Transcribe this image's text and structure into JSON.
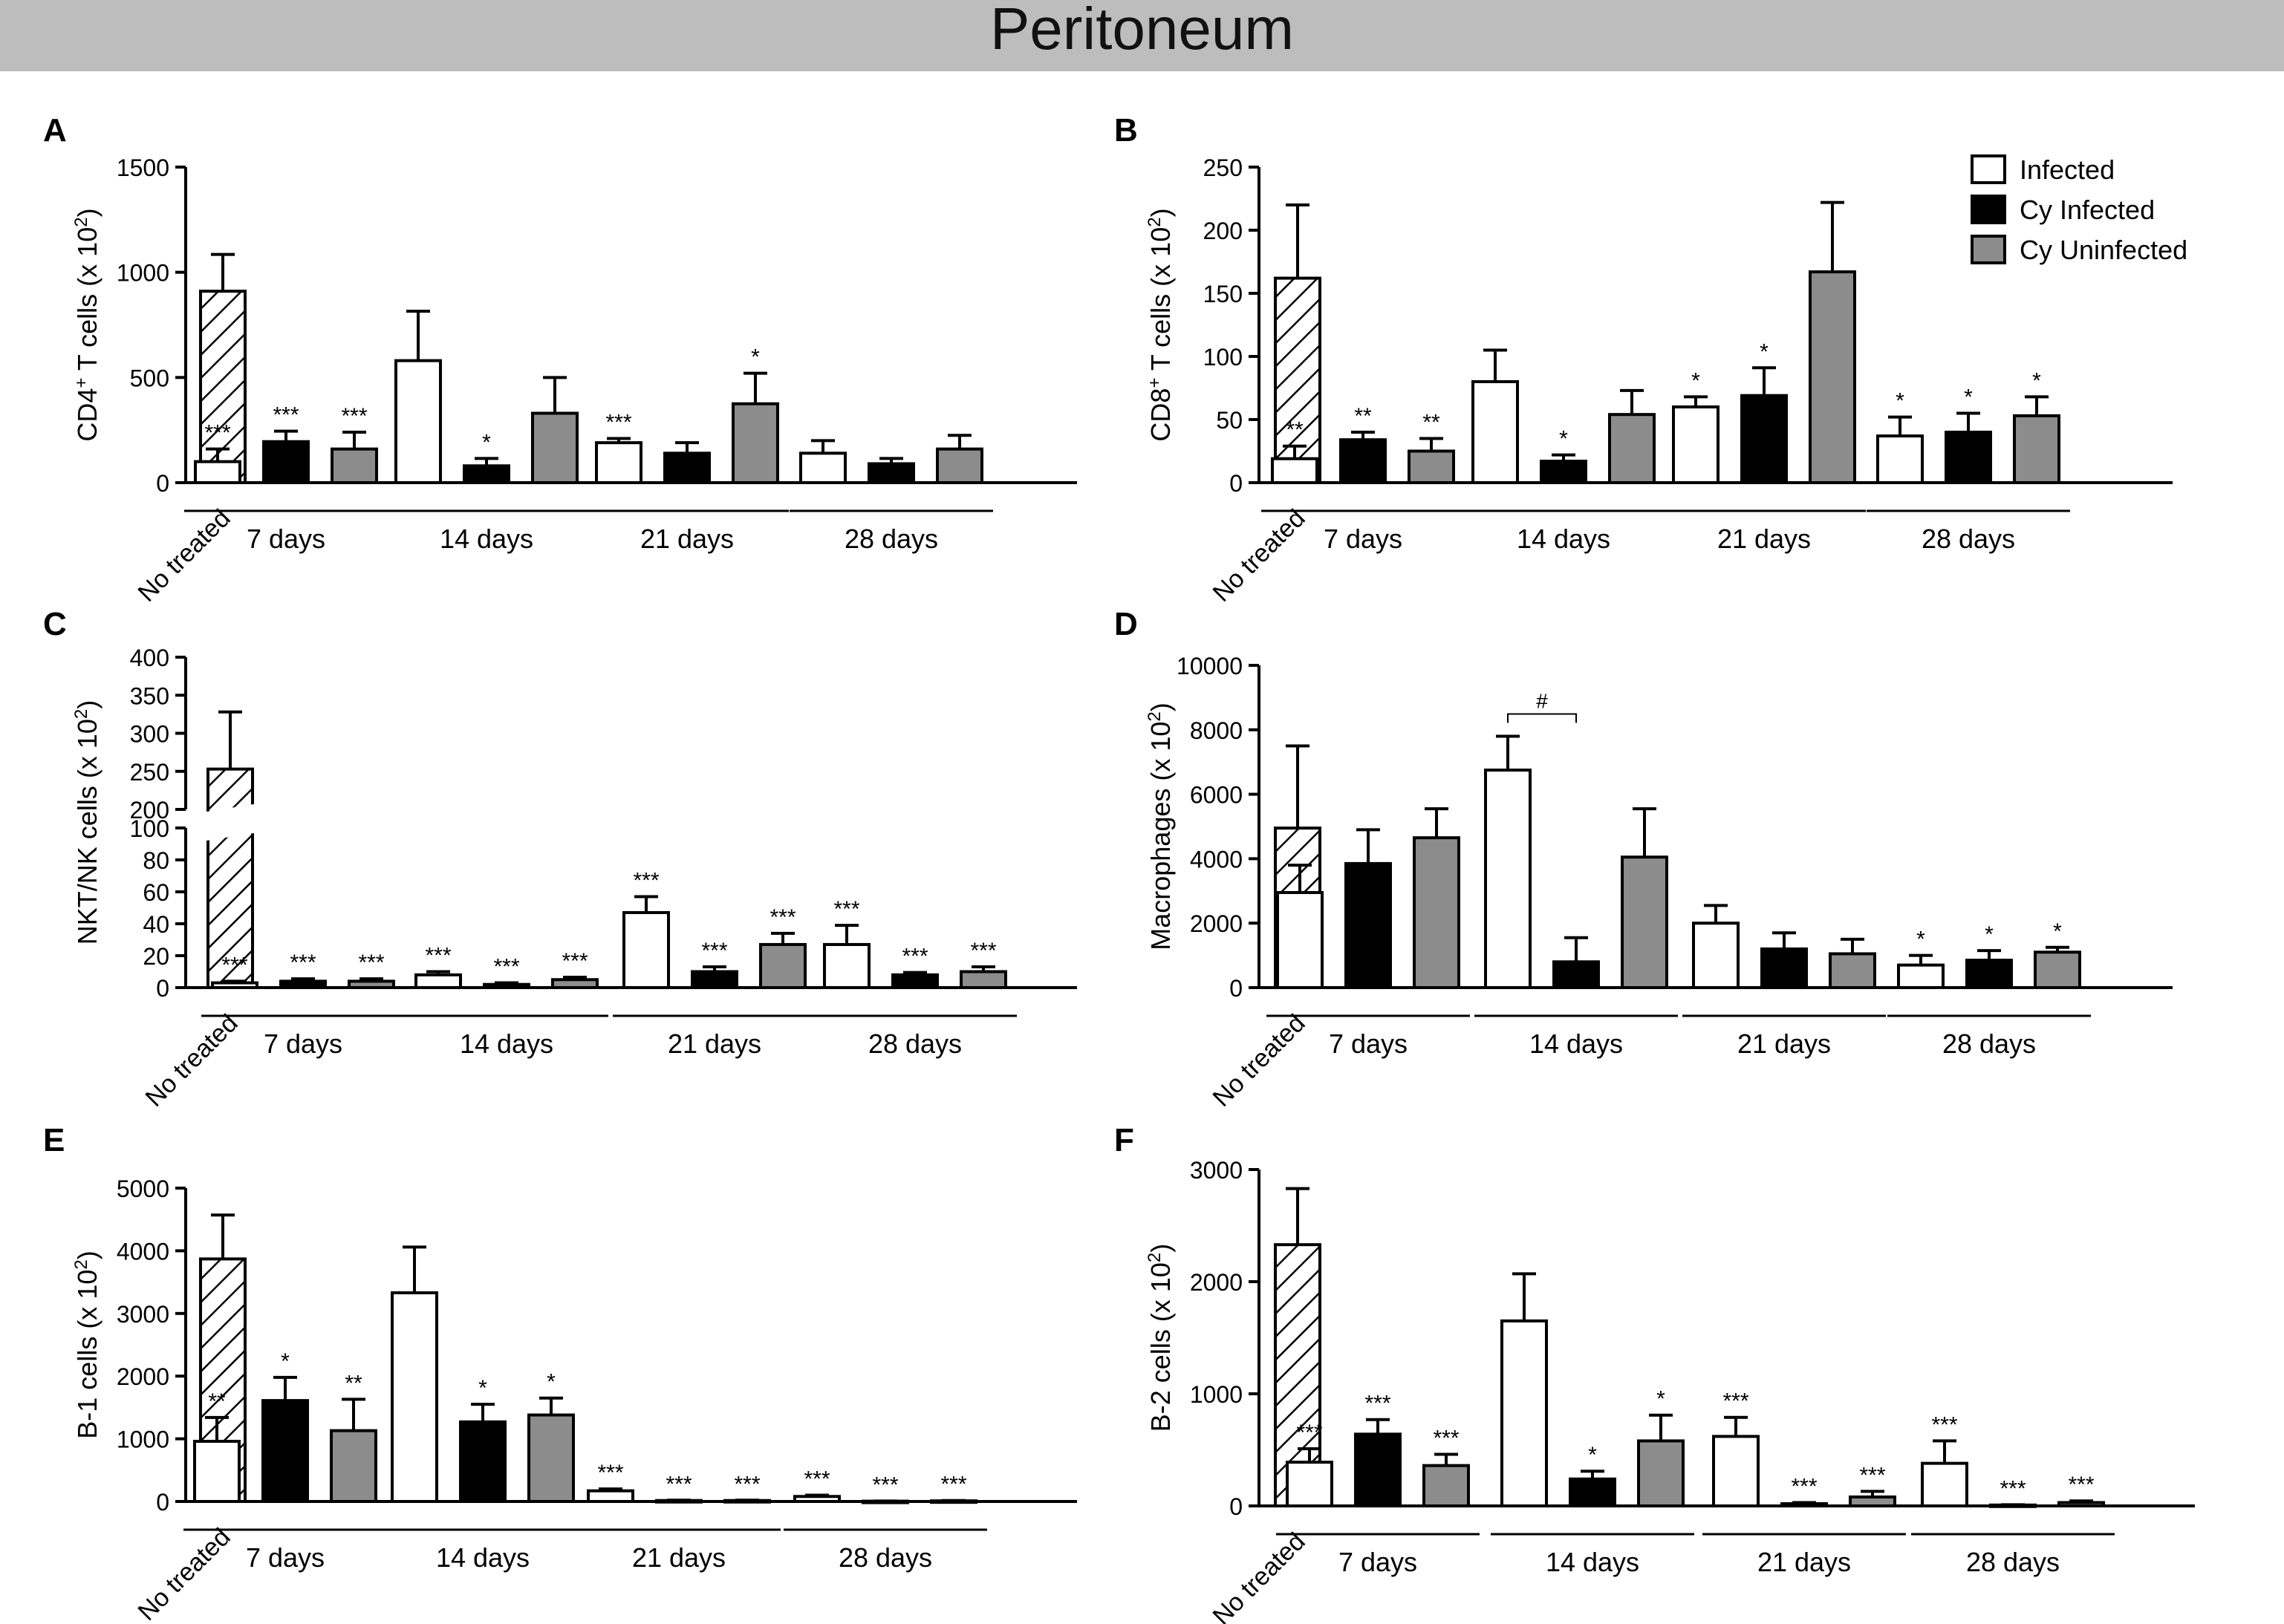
{
  "page": {
    "title": "Peritoneum"
  },
  "legend": {
    "entries": [
      {
        "label": "Infected",
        "fill": "#ffffff"
      },
      {
        "label": "Cy Infected",
        "fill": "#000000"
      },
      {
        "label": "Cy Uninfected",
        "fill": "#8c8c8c"
      }
    ]
  },
  "colors": {
    "infected": "#ffffff",
    "cy_infected": "#000000",
    "cy_uninfected": "#8c8c8c",
    "header": "#bdbdbd"
  },
  "chart_data": [
    {
      "panel": "A",
      "type": "bar",
      "ylabel_main": "CD4",
      "ylabel_sup": "+",
      "ylabel_rest": " T cells (x 10",
      "ylabel_exp": "2",
      "ylabel_end": ")",
      "ylim": [
        0,
        1500
      ],
      "yticks": [
        "0",
        "500",
        "1000",
        "1500"
      ],
      "control": {
        "label": "No treated",
        "value": 910,
        "err": 175
      },
      "groups": [
        {
          "label": "7 days",
          "bars": [
            {
              "series": "Infected",
              "value": 100,
              "err": 60,
              "sig": "***"
            },
            {
              "series": "Cy Infected",
              "value": 195,
              "err": 50,
              "sig": "***"
            },
            {
              "series": "Cy Uninfected",
              "value": 160,
              "err": 80,
              "sig": "***"
            }
          ]
        },
        {
          "label": "14 days",
          "bars": [
            {
              "series": "Infected",
              "value": 580,
              "err": 235,
              "sig": ""
            },
            {
              "series": "Cy Infected",
              "value": 80,
              "err": 35,
              "sig": "*"
            },
            {
              "series": "Cy Uninfected",
              "value": 330,
              "err": 170,
              "sig": ""
            }
          ]
        },
        {
          "label": "21 days",
          "bars": [
            {
              "series": "Infected",
              "value": 190,
              "err": 20,
              "sig": "***"
            },
            {
              "series": "Cy Infected",
              "value": 140,
              "err": 50,
              "sig": ""
            },
            {
              "series": "Cy Uninfected",
              "value": 375,
              "err": 145,
              "sig": "*"
            }
          ]
        },
        {
          "label": "28 days",
          "bars": [
            {
              "series": "Infected",
              "value": 140,
              "err": 60,
              "sig": ""
            },
            {
              "series": "Cy Infected",
              "value": 90,
              "err": 25,
              "sig": ""
            },
            {
              "series": "Cy Uninfected",
              "value": 160,
              "err": 65,
              "sig": ""
            }
          ]
        }
      ]
    },
    {
      "panel": "B",
      "type": "bar",
      "ylabel_main": "CD8",
      "ylabel_sup": "+",
      "ylabel_rest": " T cells (x 10",
      "ylabel_exp": "2",
      "ylabel_end": ")",
      "ylim": [
        0,
        250
      ],
      "yticks": [
        "0",
        "50",
        "100",
        "150",
        "200",
        "250"
      ],
      "control": {
        "label": "No treated",
        "value": 162,
        "err": 58
      },
      "groups": [
        {
          "label": "7 days",
          "bars": [
            {
              "series": "Infected",
              "value": 19,
              "err": 10,
              "sig": "**"
            },
            {
              "series": "Cy Infected",
              "value": 34,
              "err": 6,
              "sig": "**"
            },
            {
              "series": "Cy Uninfected",
              "value": 25,
              "err": 10,
              "sig": "**"
            }
          ]
        },
        {
          "label": "14 days",
          "bars": [
            {
              "series": "Infected",
              "value": 80,
              "err": 25,
              "sig": ""
            },
            {
              "series": "Cy Infected",
              "value": 17,
              "err": 5,
              "sig": "*"
            },
            {
              "series": "Cy Uninfected",
              "value": 54,
              "err": 19,
              "sig": ""
            }
          ]
        },
        {
          "label": "21 days",
          "bars": [
            {
              "series": "Infected",
              "value": 60,
              "err": 8,
              "sig": "*"
            },
            {
              "series": "Cy Infected",
              "value": 69,
              "err": 22,
              "sig": "*"
            },
            {
              "series": "Cy Uninfected",
              "value": 167,
              "err": 55,
              "sig": ""
            }
          ]
        },
        {
          "label": "28 days",
          "bars": [
            {
              "series": "Infected",
              "value": 37,
              "err": 15,
              "sig": "*"
            },
            {
              "series": "Cy Infected",
              "value": 40,
              "err": 15,
              "sig": "*"
            },
            {
              "series": "Cy Uninfected",
              "value": 53,
              "err": 15,
              "sig": "*"
            }
          ]
        }
      ]
    },
    {
      "panel": "C",
      "type": "bar",
      "axis_break": true,
      "ylabel_main": "NKT/NK cells (x 10",
      "ylabel_sup": "",
      "ylabel_rest": "",
      "ylabel_exp": "2",
      "ylabel_end": ")",
      "ylim_lower": [
        0,
        100
      ],
      "ylim_upper": [
        200,
        400
      ],
      "yticks_lower": [
        "0",
        "20",
        "40",
        "60",
        "80",
        "100"
      ],
      "yticks_upper": [
        "200",
        "250",
        "300",
        "350",
        "400"
      ],
      "control": {
        "label": "No treated",
        "value": 253,
        "err": 75
      },
      "groups": [
        {
          "label": "7 days",
          "bars": [
            {
              "series": "Infected",
              "value": 3,
              "err": 1,
              "sig": "***"
            },
            {
              "series": "Cy Infected",
              "value": 4,
              "err": 1.5,
              "sig": "***"
            },
            {
              "series": "Cy Uninfected",
              "value": 4,
              "err": 1.5,
              "sig": "***"
            }
          ]
        },
        {
          "label": "14 days",
          "bars": [
            {
              "series": "Infected",
              "value": 8,
              "err": 2,
              "sig": "***"
            },
            {
              "series": "Cy Infected",
              "value": 2,
              "err": 1,
              "sig": "***"
            },
            {
              "series": "Cy Uninfected",
              "value": 5,
              "err": 1.5,
              "sig": "***"
            }
          ]
        },
        {
          "label": "21 days",
          "bars": [
            {
              "series": "Infected",
              "value": 47,
              "err": 10,
              "sig": "***"
            },
            {
              "series": "Cy Infected",
              "value": 10,
              "err": 3,
              "sig": "***"
            },
            {
              "series": "Cy Uninfected",
              "value": 27,
              "err": 7,
              "sig": "***"
            }
          ]
        },
        {
          "label": "28 days",
          "bars": [
            {
              "series": "Infected",
              "value": 27,
              "err": 12,
              "sig": "***"
            },
            {
              "series": "Cy Infected",
              "value": 8,
              "err": 1.5,
              "sig": "***"
            },
            {
              "series": "Cy Uninfected",
              "value": 10,
              "err": 3,
              "sig": "***"
            }
          ]
        }
      ]
    },
    {
      "panel": "D",
      "type": "bar",
      "ylabel_main": "Macrophages (x 10",
      "ylabel_sup": "",
      "ylabel_rest": "",
      "ylabel_exp": "2",
      "ylabel_end": ")",
      "ylim": [
        0,
        10000
      ],
      "yticks": [
        "0",
        "2000",
        "4000",
        "6000",
        "8000",
        "10000"
      ],
      "control": {
        "label": "No treated",
        "value": 4950,
        "err": 2550
      },
      "groups": [
        {
          "label": "7 days",
          "bars": [
            {
              "series": "Infected",
              "value": 2950,
              "err": 850,
              "sig": ""
            },
            {
              "series": "Cy Infected",
              "value": 3850,
              "err": 1050,
              "sig": ""
            },
            {
              "series": "Cy Uninfected",
              "value": 4650,
              "err": 900,
              "sig": ""
            }
          ]
        },
        {
          "label": "14 days",
          "bars": [
            {
              "series": "Infected",
              "value": 6750,
              "err": 1050,
              "sig": ""
            },
            {
              "series": "Cy Infected",
              "value": 800,
              "err": 750,
              "sig": ""
            },
            {
              "series": "Cy Uninfected",
              "value": 4050,
              "err": 1500,
              "sig": ""
            }
          ]
        },
        {
          "label": "21 days",
          "bars": [
            {
              "series": "Infected",
              "value": 2000,
              "err": 550,
              "sig": ""
            },
            {
              "series": "Cy Infected",
              "value": 1200,
              "err": 500,
              "sig": ""
            },
            {
              "series": "Cy Uninfected",
              "value": 1050,
              "err": 450,
              "sig": ""
            }
          ]
        },
        {
          "label": "28 days",
          "bars": [
            {
              "series": "Infected",
              "value": 700,
              "err": 300,
              "sig": "*"
            },
            {
              "series": "Cy Infected",
              "value": 850,
              "err": 300,
              "sig": "*"
            },
            {
              "series": "Cy Uninfected",
              "value": 1100,
              "err": 150,
              "sig": "*"
            }
          ]
        }
      ],
      "bracket": {
        "group_index": 1,
        "from_bar": 0,
        "to_bar": 1,
        "label": "#"
      }
    },
    {
      "panel": "E",
      "type": "bar",
      "ylabel_main": "B-1 cells (x 10",
      "ylabel_sup": "",
      "ylabel_rest": "",
      "ylabel_exp": "2",
      "ylabel_end": ")",
      "ylim": [
        0,
        5000
      ],
      "yticks": [
        "0",
        "1000",
        "2000",
        "3000",
        "4000",
        "5000"
      ],
      "control": {
        "label": "No treated",
        "value": 3870,
        "err": 700
      },
      "groups": [
        {
          "label": "7 days",
          "bars": [
            {
              "series": "Infected",
              "value": 960,
              "err": 380,
              "sig": "**"
            },
            {
              "series": "Cy Infected",
              "value": 1610,
              "err": 370,
              "sig": "*"
            },
            {
              "series": "Cy Uninfected",
              "value": 1130,
              "err": 500,
              "sig": "**"
            }
          ]
        },
        {
          "label": "14 days",
          "bars": [
            {
              "series": "Infected",
              "value": 3330,
              "err": 730,
              "sig": ""
            },
            {
              "series": "Cy Infected",
              "value": 1270,
              "err": 280,
              "sig": "*"
            },
            {
              "series": "Cy Uninfected",
              "value": 1380,
              "err": 270,
              "sig": "*"
            }
          ]
        },
        {
          "label": "21 days",
          "bars": [
            {
              "series": "Infected",
              "value": 170,
              "err": 30,
              "sig": "***"
            },
            {
              "series": "Cy Infected",
              "value": 15,
              "err": 5,
              "sig": "***"
            },
            {
              "series": "Cy Uninfected",
              "value": 15,
              "err": 5,
              "sig": "***"
            }
          ]
        },
        {
          "label": "28 days",
          "bars": [
            {
              "series": "Infected",
              "value": 80,
              "err": 20,
              "sig": "***"
            },
            {
              "series": "Cy Infected",
              "value": 5,
              "err": 3,
              "sig": "***"
            },
            {
              "series": "Cy Uninfected",
              "value": 10,
              "err": 5,
              "sig": "***"
            }
          ]
        }
      ]
    },
    {
      "panel": "F",
      "type": "bar",
      "ylabel_main": "B-2 cells (x 10",
      "ylabel_sup": "",
      "ylabel_rest": "",
      "ylabel_exp": "2",
      "ylabel_end": ")",
      "ylim": [
        0,
        3000
      ],
      "yticks": [
        "0",
        "1000",
        "2000",
        "3000"
      ],
      "control": {
        "label": "No treated",
        "value": 2330,
        "err": 500
      },
      "groups": [
        {
          "label": "7 days",
          "bars": [
            {
              "series": "Infected",
              "value": 390,
              "err": 120,
              "sig": "***"
            },
            {
              "series": "Cy Infected",
              "value": 640,
              "err": 130,
              "sig": "***"
            },
            {
              "series": "Cy Uninfected",
              "value": 360,
              "err": 100,
              "sig": "***"
            }
          ]
        },
        {
          "label": "14 days",
          "bars": [
            {
              "series": "Infected",
              "value": 1650,
              "err": 420,
              "sig": ""
            },
            {
              "series": "Cy Infected",
              "value": 240,
              "err": 70,
              "sig": "*"
            },
            {
              "series": "Cy Uninfected",
              "value": 580,
              "err": 230,
              "sig": "*"
            }
          ]
        },
        {
          "label": "21 days",
          "bars": [
            {
              "series": "Infected",
              "value": 620,
              "err": 170,
              "sig": "***"
            },
            {
              "series": "Cy Infected",
              "value": 20,
              "err": 10,
              "sig": "***"
            },
            {
              "series": "Cy Uninfected",
              "value": 80,
              "err": 50,
              "sig": "***"
            }
          ]
        },
        {
          "label": "28 days",
          "bars": [
            {
              "series": "Infected",
              "value": 380,
              "err": 200,
              "sig": "***"
            },
            {
              "series": "Cy Infected",
              "value": 8,
              "err": 3,
              "sig": "***"
            },
            {
              "series": "Cy Uninfected",
              "value": 30,
              "err": 15,
              "sig": "***"
            }
          ]
        }
      ]
    }
  ]
}
